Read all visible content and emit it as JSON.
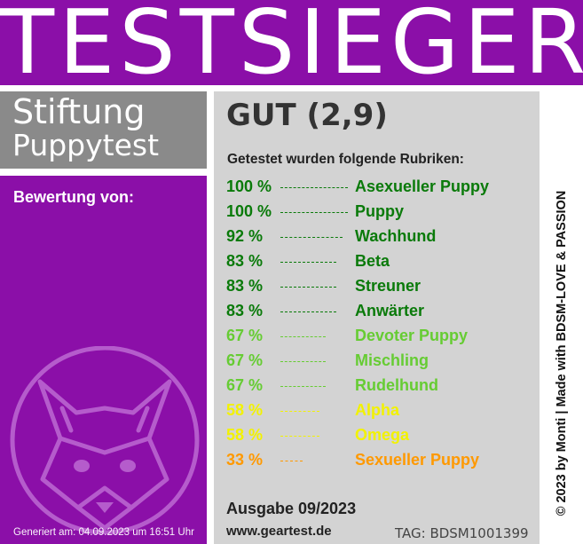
{
  "title": "TESTSIEGER",
  "brand": {
    "line1": "Stiftung",
    "line2": "Puppytest"
  },
  "left": {
    "bewertung_label": "Bewertung von:",
    "generated": "Generiert am: 04.09.2023 um 16:51 Uhr"
  },
  "panel": {
    "grade": "GUT (2,9)",
    "heading": "Getestet wurden folgende Rubriken:",
    "rubriken": [
      {
        "percent": "100 %",
        "name": "Asexueller Puppy",
        "value": 100,
        "color": "#0a7a0a"
      },
      {
        "percent": "100 %",
        "name": "Puppy",
        "value": 100,
        "color": "#0a7a0a"
      },
      {
        "percent": "92 %",
        "name": "Wachhund",
        "value": 92,
        "color": "#0a7a0a"
      },
      {
        "percent": "83 %",
        "name": "Beta",
        "value": 83,
        "color": "#0a7a0a"
      },
      {
        "percent": "83 %",
        "name": "Streuner",
        "value": 83,
        "color": "#0a7a0a"
      },
      {
        "percent": "83 %",
        "name": "Anwärter",
        "value": 83,
        "color": "#0a7a0a"
      },
      {
        "percent": "67 %",
        "name": "Devoter Puppy",
        "value": 67,
        "color": "#66cc33"
      },
      {
        "percent": "67 %",
        "name": "Mischling",
        "value": 67,
        "color": "#66cc33"
      },
      {
        "percent": "67 %",
        "name": "Rudelhund",
        "value": 67,
        "color": "#66cc33"
      },
      {
        "percent": "58 %",
        "name": "Alpha",
        "value": 58,
        "color": "#f2f200"
      },
      {
        "percent": "58 %",
        "name": "Omega",
        "value": 58,
        "color": "#f2f200"
      },
      {
        "percent": "33 %",
        "name": "Sexueller Puppy",
        "value": 33,
        "color": "#ff9900"
      }
    ],
    "ausgabe": "Ausgabe 09/2023",
    "website": "www.geartest.de",
    "tag": "TAG: BDSM1001399"
  },
  "side": {
    "copyright": "© 2023 by Monti | Made with BDSM-LOVE & PASSION"
  },
  "colors": {
    "purple": "#8b0fa8",
    "gray_panel": "#d3d3d3",
    "brand_gray": "#8a8a8a"
  }
}
